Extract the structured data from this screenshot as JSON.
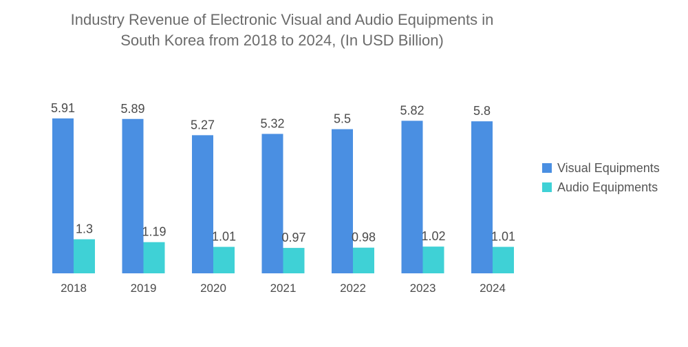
{
  "chart_data": {
    "type": "bar",
    "title_line1": "Industry Revenue of Electronic Visual and Audio Equipments in",
    "title_line2": "South Korea from 2018 to 2024, (In USD Billion)",
    "categories": [
      "2018",
      "2019",
      "2020",
      "2021",
      "2022",
      "2023",
      "2024"
    ],
    "series": [
      {
        "name": "Visual Equipments",
        "color": "#4a8fe2",
        "values": [
          5.91,
          5.89,
          5.27,
          5.32,
          5.5,
          5.82,
          5.8
        ],
        "labels": [
          "5.91",
          "5.89",
          "5.27",
          "5.32",
          "5.5",
          "5.82",
          "5.8"
        ]
      },
      {
        "name": "Audio Equipments",
        "color": "#3fd1d6",
        "values": [
          1.3,
          1.19,
          1.01,
          0.97,
          0.98,
          1.02,
          1.01
        ],
        "labels": [
          "1.3",
          "1.19",
          "1.01",
          "0.97",
          "0.98",
          "1.02",
          "1.01"
        ]
      }
    ],
    "ylim": [
      0,
      5.91
    ],
    "grid": false,
    "legend_position": "right"
  }
}
